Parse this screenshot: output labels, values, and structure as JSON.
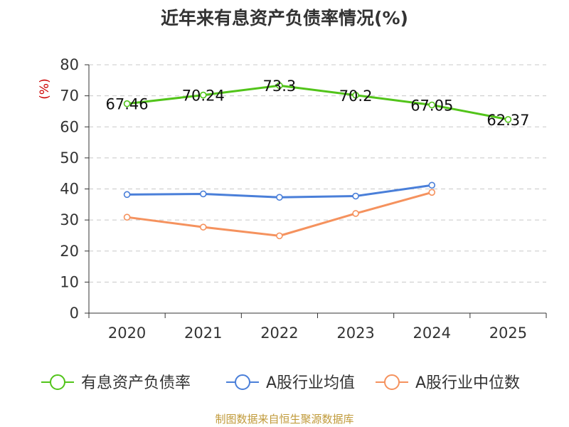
{
  "title": "近年来有息资产负债率情况(%)",
  "source": "制图数据来自恒生聚源数据库",
  "chart_data": {
    "type": "line",
    "title": "近年来有息资产负债率情况(%)",
    "ylabel": "(%)",
    "xlabel": "",
    "categories": [
      "2020",
      "2021",
      "2022",
      "2023",
      "2024",
      "2025"
    ],
    "ylim": [
      0,
      80
    ],
    "yticks": [
      0,
      10,
      20,
      30,
      40,
      50,
      60,
      70,
      80
    ],
    "grid": true,
    "legend_position": "bottom",
    "series": [
      {
        "name": "有息资产负债率",
        "color": "#52c41a",
        "values": [
          67.46,
          70.24,
          73.3,
          70.2,
          67.05,
          62.37
        ],
        "labels": [
          "67.46",
          "70.24",
          "73.3",
          "70.2",
          "67.05",
          "62.37"
        ]
      },
      {
        "name": "A股行业均值",
        "color": "#4a7fd9",
        "values": [
          38.2,
          38.4,
          37.3,
          37.7,
          41.2,
          null
        ]
      },
      {
        "name": "A股行业中位数",
        "color": "#f5925e",
        "values": [
          30.9,
          27.7,
          24.9,
          32.1,
          38.9,
          null
        ]
      }
    ]
  }
}
